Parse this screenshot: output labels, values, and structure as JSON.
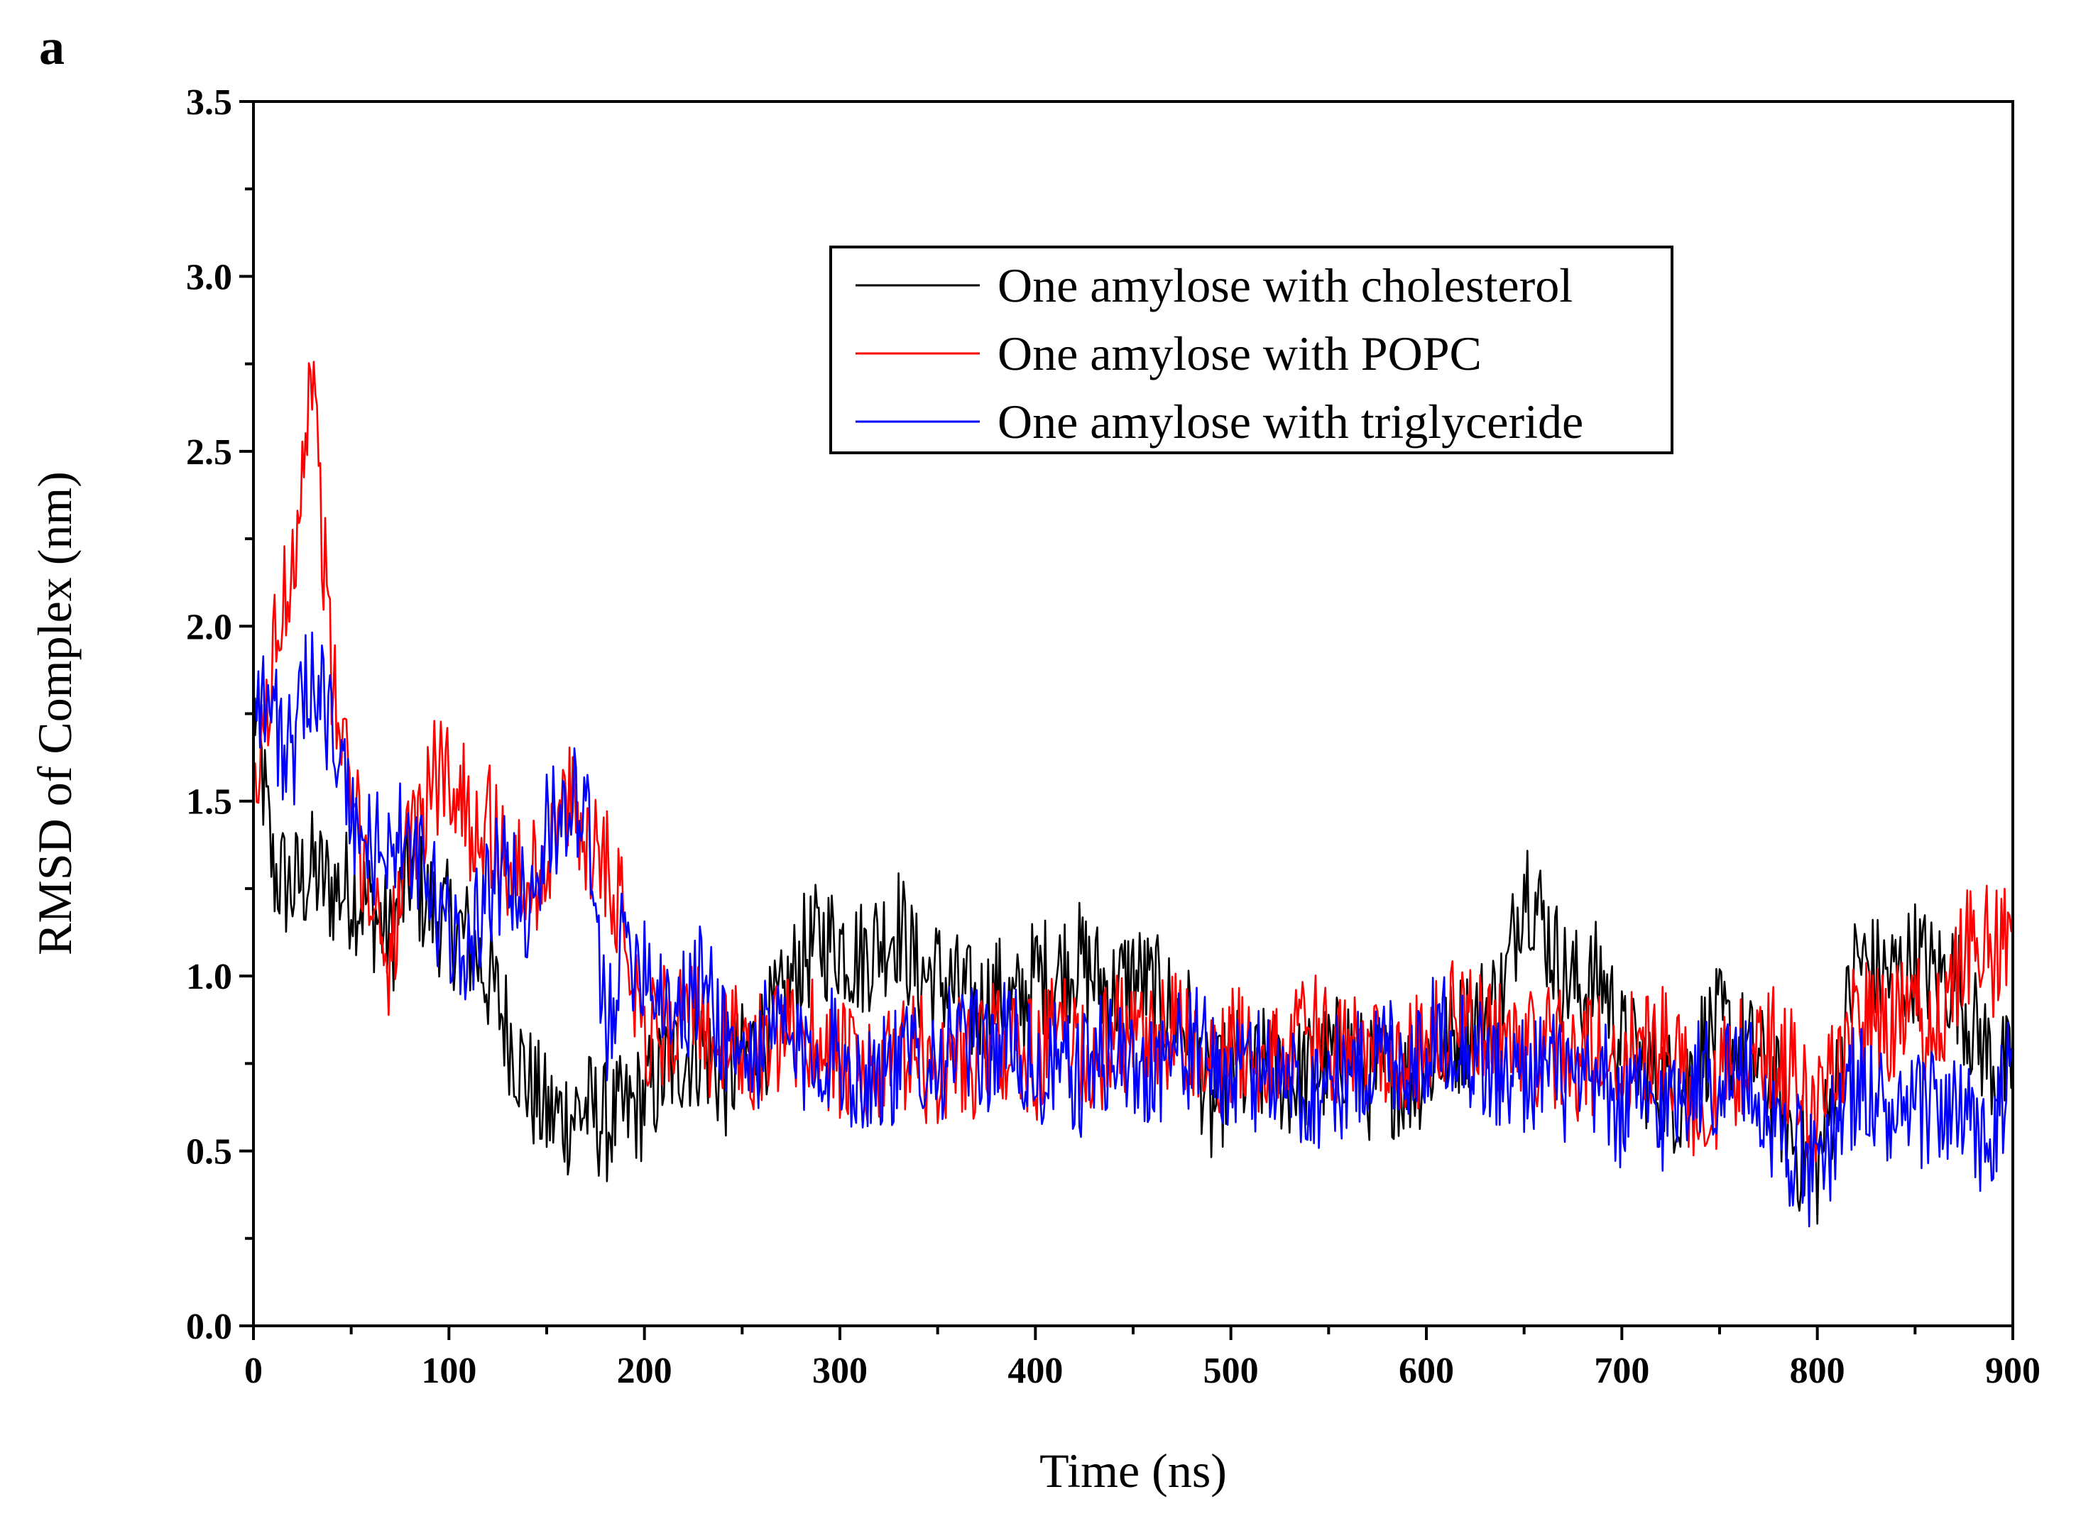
{
  "panel_label": "a",
  "chart_data": {
    "type": "line",
    "title": "",
    "xlabel": "Time (ns)",
    "ylabel": "RMSD of Complex (nm)",
    "xlim": [
      0,
      900
    ],
    "ylim": [
      0,
      3.5
    ],
    "x_ticks": [
      0,
      100,
      200,
      300,
      400,
      500,
      600,
      700,
      800,
      900
    ],
    "x_tick_labels": [
      "0",
      "100",
      "200",
      "300",
      "400",
      "500",
      "600",
      "700",
      "800",
      "900"
    ],
    "y_ticks": [
      0,
      0.5,
      1,
      1.5,
      2,
      2.5,
      3,
      3.5
    ],
    "y_tick_labels": [
      "0.0",
      "0.5",
      "1.0",
      "1.5",
      "2.0",
      "2.5",
      "3.0",
      "3.5"
    ],
    "grid": false,
    "legend_position": "top-right",
    "x": [
      0,
      10,
      20,
      30,
      40,
      50,
      60,
      70,
      80,
      90,
      100,
      110,
      120,
      130,
      140,
      150,
      160,
      170,
      180,
      190,
      200,
      210,
      220,
      230,
      240,
      250,
      260,
      270,
      280,
      290,
      300,
      310,
      320,
      330,
      340,
      350,
      360,
      370,
      380,
      390,
      400,
      410,
      420,
      430,
      440,
      450,
      460,
      470,
      480,
      490,
      500,
      510,
      520,
      530,
      540,
      550,
      560,
      570,
      580,
      590,
      600,
      610,
      620,
      630,
      640,
      650,
      660,
      670,
      680,
      690,
      700,
      710,
      720,
      730,
      740,
      750,
      760,
      770,
      780,
      790,
      800,
      810,
      820,
      830,
      840,
      850,
      860,
      870,
      880,
      890,
      900
    ],
    "series": [
      {
        "name": "One amylose with cholesterol",
        "color": "#000000",
        "values": [
          1.8,
          1.3,
          1.25,
          1.3,
          1.25,
          1.25,
          1.2,
          1.1,
          1.3,
          1.2,
          1.15,
          1.1,
          1.0,
          0.85,
          0.7,
          0.6,
          0.6,
          0.62,
          0.58,
          0.6,
          0.65,
          0.72,
          0.78,
          0.8,
          0.7,
          0.75,
          0.82,
          0.9,
          1.05,
          1.1,
          1.1,
          1.05,
          1.1,
          1.15,
          1.0,
          1.0,
          0.95,
          0.9,
          0.95,
          0.9,
          1.0,
          1.0,
          1.05,
          1.0,
          0.95,
          1.0,
          0.95,
          0.9,
          0.85,
          0.6,
          0.75,
          0.7,
          0.75,
          0.7,
          0.72,
          0.75,
          0.8,
          0.7,
          0.72,
          0.7,
          0.75,
          0.8,
          0.85,
          0.9,
          0.95,
          1.3,
          1.15,
          1.0,
          0.95,
          1.0,
          0.8,
          0.75,
          0.7,
          0.65,
          0.8,
          0.85,
          0.8,
          0.75,
          0.65,
          0.5,
          0.45,
          0.7,
          1.05,
          1.0,
          1.0,
          1.05,
          1.0,
          1.0,
          0.85,
          0.75,
          0.7
        ]
      },
      {
        "name": "One amylose with POPC",
        "color": "#ff0000",
        "values": [
          1.45,
          1.9,
          2.2,
          2.75,
          1.85,
          1.5,
          1.25,
          1.05,
          1.35,
          1.55,
          1.6,
          1.45,
          1.45,
          1.3,
          1.25,
          1.35,
          1.5,
          1.4,
          1.35,
          1.15,
          0.85,
          0.85,
          0.9,
          0.85,
          0.8,
          0.8,
          0.78,
          0.8,
          0.85,
          0.82,
          0.75,
          0.72,
          0.7,
          0.75,
          0.78,
          0.7,
          0.8,
          0.75,
          0.82,
          0.8,
          0.75,
          0.85,
          0.8,
          0.75,
          0.85,
          0.8,
          0.78,
          0.85,
          0.8,
          0.7,
          0.8,
          0.8,
          0.75,
          0.8,
          0.85,
          0.8,
          0.75,
          0.8,
          0.82,
          0.75,
          0.8,
          0.85,
          0.9,
          0.85,
          0.8,
          0.82,
          0.8,
          0.78,
          0.75,
          0.8,
          0.75,
          0.8,
          0.8,
          0.75,
          0.6,
          0.7,
          0.75,
          0.8,
          0.8,
          0.7,
          0.6,
          0.75,
          0.9,
          0.85,
          0.85,
          0.9,
          0.85,
          0.95,
          1.15,
          1.05,
          1.2
        ]
      },
      {
        "name": "One amylose with triglyceride",
        "color": "#0000ff",
        "values": [
          1.85,
          1.75,
          1.6,
          1.9,
          1.7,
          1.45,
          1.35,
          1.4,
          1.35,
          1.25,
          1.1,
          1.1,
          1.25,
          1.3,
          1.2,
          1.4,
          1.5,
          1.45,
          0.85,
          1.1,
          1.05,
          0.95,
          0.9,
          1.0,
          0.85,
          0.75,
          0.8,
          0.85,
          0.75,
          0.8,
          0.78,
          0.7,
          0.75,
          0.72,
          0.8,
          0.75,
          0.82,
          0.78,
          0.8,
          0.82,
          0.7,
          0.75,
          0.7,
          0.75,
          0.8,
          0.72,
          0.75,
          0.78,
          0.8,
          0.75,
          0.7,
          0.72,
          0.75,
          0.7,
          0.65,
          0.72,
          0.7,
          0.75,
          0.8,
          0.75,
          0.8,
          0.85,
          0.8,
          0.75,
          0.7,
          0.72,
          0.75,
          0.7,
          0.65,
          0.7,
          0.6,
          0.65,
          0.6,
          0.68,
          0.72,
          0.7,
          0.75,
          0.65,
          0.55,
          0.5,
          0.4,
          0.6,
          0.7,
          0.65,
          0.55,
          0.6,
          0.65,
          0.6,
          0.55,
          0.5,
          0.8
        ]
      }
    ]
  }
}
